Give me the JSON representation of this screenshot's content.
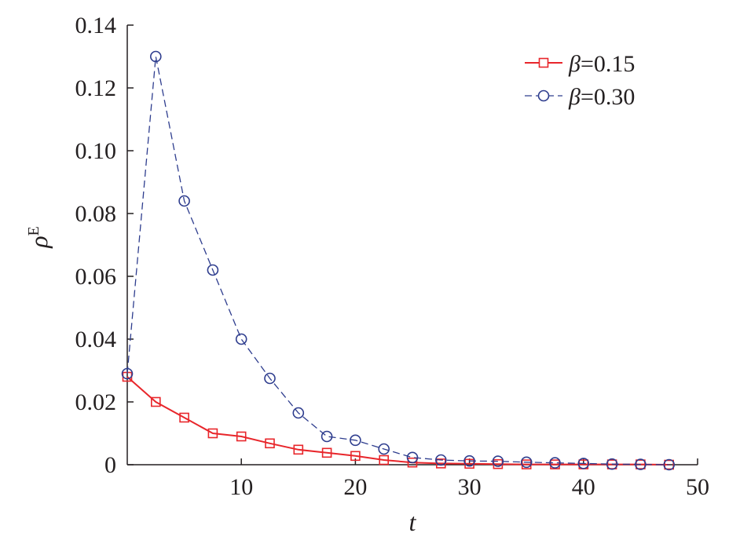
{
  "chart_data": {
    "type": "line",
    "xlabel": "t",
    "ylabel_main": "ρ",
    "ylabel_sup": "E",
    "xlim": [
      0,
      50
    ],
    "ylim": [
      0,
      0.14
    ],
    "xticks": [
      10,
      20,
      30,
      40,
      50
    ],
    "xtick_labels": [
      "10",
      "20",
      "30",
      "40",
      "50"
    ],
    "yticks": [
      0,
      0.02,
      0.04,
      0.06,
      0.08,
      0.1,
      0.12,
      0.14
    ],
    "ytick_labels": [
      "0",
      "0.02",
      "0.04",
      "0.06",
      "0.08",
      "0.10",
      "0.12",
      "0.14"
    ],
    "grid": false,
    "legend_position": "top-right",
    "series": [
      {
        "name_symbol": "β",
        "name_value": "=0.15",
        "color": "#e8262b",
        "marker": "square",
        "line_style": "solid",
        "x": [
          0,
          2.5,
          5,
          7.5,
          10,
          12.5,
          15,
          17.5,
          20,
          22.5,
          25,
          27.5,
          30,
          32.5,
          35,
          37.5,
          40,
          42.5,
          45,
          47.5
        ],
        "y": [
          0.028,
          0.02,
          0.015,
          0.01,
          0.009,
          0.0068,
          0.0048,
          0.0038,
          0.0028,
          0.0015,
          0.0007,
          0.0004,
          0.0003,
          0.0002,
          0.0001,
          0.0001,
          0.0001,
          0.0001,
          0.0001,
          0.0
        ]
      },
      {
        "name_symbol": "β",
        "name_value": "=0.30",
        "color": "#2e3d8e",
        "marker": "circle",
        "line_style": "dashed",
        "x": [
          0,
          2.5,
          5,
          7.5,
          10,
          12.5,
          15,
          17.5,
          20,
          22.5,
          25,
          27.5,
          30,
          32.5,
          35,
          37.5,
          40,
          42.5,
          45,
          47.5
        ],
        "y": [
          0.029,
          0.13,
          0.084,
          0.062,
          0.04,
          0.0275,
          0.0165,
          0.009,
          0.0078,
          0.005,
          0.0023,
          0.0015,
          0.0012,
          0.0011,
          0.0008,
          0.0006,
          0.0004,
          0.0002,
          0.0001,
          0.0
        ]
      }
    ]
  }
}
